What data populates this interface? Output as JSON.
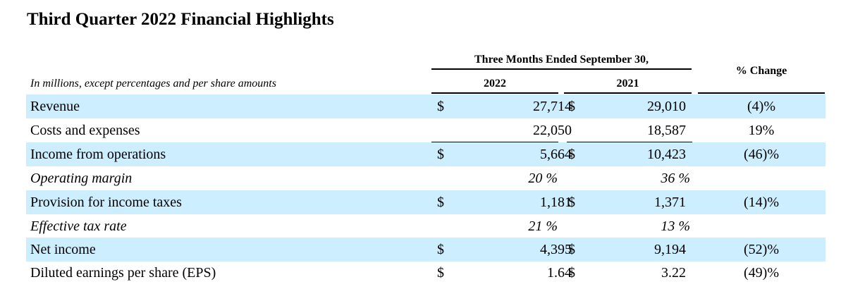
{
  "title": "Third Quarter 2022 Financial Highlights",
  "units_note": "In millions, except percentages and per share amounts",
  "header": {
    "period": "Three Months Ended September 30,",
    "year_current": "2022",
    "year_prior": "2021",
    "change": "% Change"
  },
  "rows": [
    {
      "label": "Revenue",
      "dollar_a": "$",
      "value_a": "27,714",
      "dollar_b": "$",
      "value_b": "29,010",
      "change": "(4)%"
    },
    {
      "label": "Costs and expenses",
      "dollar_a": "",
      "value_a": "22,050",
      "dollar_b": "",
      "value_b": "18,587",
      "change": "19%"
    },
    {
      "label": "Income from operations",
      "dollar_a": "$",
      "value_a": "5,664",
      "dollar_b": "$",
      "value_b": "10,423",
      "change": "(46)%"
    },
    {
      "label": "Operating margin",
      "value_a": "20 %",
      "value_b": "36 %"
    },
    {
      "label": "Provision for income taxes",
      "dollar_a": "$",
      "value_a": "1,181",
      "dollar_b": "$",
      "value_b": "1,371",
      "change": "(14)%"
    },
    {
      "label": "Effective tax rate",
      "value_a": "21 %",
      "value_b": "13 %"
    },
    {
      "label": "Net income",
      "dollar_a": "$",
      "value_a": "4,395",
      "dollar_b": "$",
      "value_b": "9,194",
      "change": "(52)%"
    },
    {
      "label": "Diluted earnings per share (EPS)",
      "dollar_a": "$",
      "value_a": "1.64",
      "dollar_b": "$",
      "value_b": "3.22",
      "change": "(49)%"
    }
  ],
  "colors": {
    "row_shading": "#cceefe",
    "text": "#000000"
  }
}
